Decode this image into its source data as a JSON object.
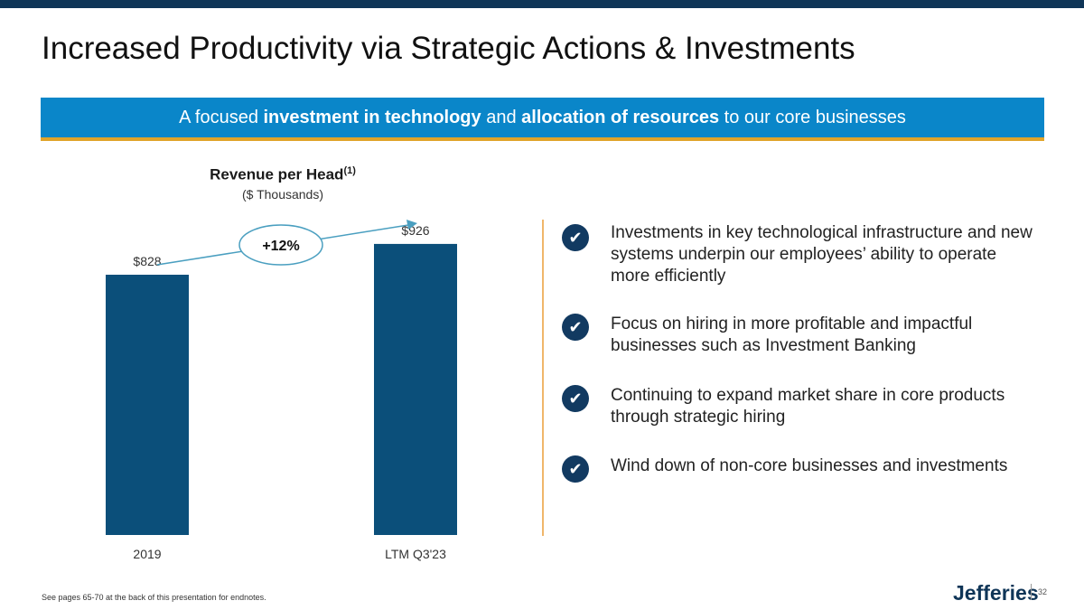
{
  "title": "Increased Productivity via Strategic Actions & Investments",
  "banner": {
    "prefix": "A focused ",
    "bold1": "investment in technology",
    "middle": " and ",
    "bold2": "allocation of resources",
    "suffix": " to our core businesses"
  },
  "colors": {
    "top_bar": "#0f3557",
    "banner": "#0a86c9",
    "banner_underline": "#e0a42a",
    "bar": "#0b4f7a",
    "check": "#123a61"
  },
  "chart_data": {
    "type": "bar",
    "title": "Revenue per Head",
    "title_superscript": "(1)",
    "subtitle": "($ Thousands)",
    "categories": [
      "2019",
      "LTM Q3'23"
    ],
    "values": [
      828,
      926
    ],
    "data_labels": [
      "$828",
      "$926"
    ],
    "annotation": "+12%",
    "ylim": [
      0,
      1150
    ],
    "grid": false
  },
  "bullets": [
    {
      "icon": "check-icon",
      "text": "Investments in key technological infrastructure and new systems underpin our employees’ ability to operate more efficiently"
    },
    {
      "icon": "check-icon",
      "text": "Focus on hiring in more profitable and impactful businesses such as Investment Banking"
    },
    {
      "icon": "check-icon",
      "text": "Continuing to expand market share in core products through strategic hiring"
    },
    {
      "icon": "check-icon",
      "text": "Wind down of non-core businesses and investments"
    }
  ],
  "footnote": "See pages 65-70 at the back of this presentation for endnotes.",
  "logo": "Jefferies",
  "page_number": "32"
}
